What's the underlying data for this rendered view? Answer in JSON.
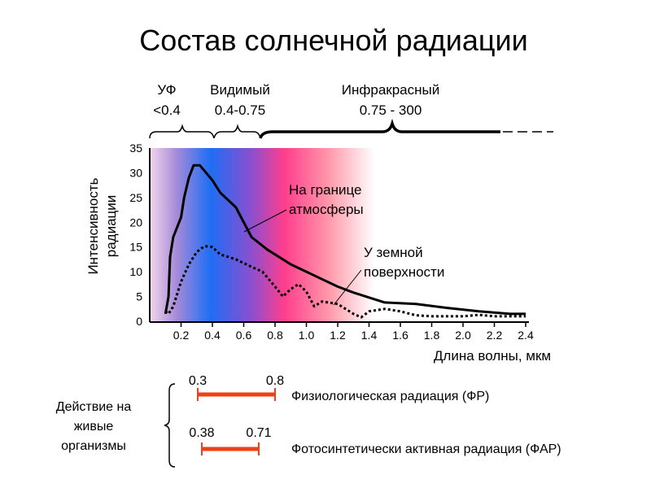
{
  "title": "Состав солнечной радиации",
  "bands": [
    {
      "name": "УФ",
      "range": "<0.4"
    },
    {
      "name": "Видимый",
      "range": "0.4-0.75"
    },
    {
      "name": "Инфракрасный",
      "range": "0.75 - 300"
    }
  ],
  "chart_data": {
    "type": "line",
    "title": "Состав солнечной радиации",
    "xlabel": "Длина волны, мкм",
    "ylabel_lines": [
      "Интенсивность",
      "радиации"
    ],
    "xlim": [
      0,
      2.4
    ],
    "ylim": [
      0,
      35
    ],
    "x_ticks": [
      "0.2",
      "0.4",
      "0.6",
      "0.8",
      "1.0",
      "1.2",
      "1.4",
      "1.6",
      "1.8",
      "2.0",
      "2.2",
      "2.4"
    ],
    "y_ticks": [
      "0",
      "5",
      "10",
      "15",
      "20",
      "25",
      "30",
      "35"
    ],
    "series": [
      {
        "name": "На границе атмосферы",
        "label_lines": [
          "На границе",
          "атмосферы"
        ],
        "style": "solid",
        "points": [
          [
            0.1,
            1.5
          ],
          [
            0.12,
            5
          ],
          [
            0.13,
            13
          ],
          [
            0.15,
            17
          ],
          [
            0.2,
            21
          ],
          [
            0.22,
            25
          ],
          [
            0.25,
            29
          ],
          [
            0.28,
            31.5
          ],
          [
            0.32,
            31.5
          ],
          [
            0.4,
            28.5
          ],
          [
            0.45,
            26
          ],
          [
            0.55,
            23
          ],
          [
            0.65,
            17
          ],
          [
            0.75,
            14.5
          ],
          [
            0.9,
            11.5
          ],
          [
            1.0,
            10
          ],
          [
            1.1,
            8.5
          ],
          [
            1.2,
            7
          ],
          [
            1.3,
            5.8
          ],
          [
            1.4,
            4.8
          ],
          [
            1.5,
            3.8
          ],
          [
            1.7,
            3.5
          ],
          [
            1.9,
            2.7
          ],
          [
            2.1,
            2
          ],
          [
            2.3,
            1.5
          ],
          [
            2.4,
            1.5
          ]
        ]
      },
      {
        "name": "У земной поверхности",
        "label_lines": [
          "У земной",
          "поверхности"
        ],
        "style": "dotted",
        "points": [
          [
            0.1,
            2
          ],
          [
            0.12,
            1.5
          ],
          [
            0.15,
            3
          ],
          [
            0.2,
            8
          ],
          [
            0.25,
            11.5
          ],
          [
            0.3,
            14
          ],
          [
            0.35,
            15.2
          ],
          [
            0.4,
            15
          ],
          [
            0.45,
            13.5
          ],
          [
            0.55,
            12.5
          ],
          [
            0.65,
            11
          ],
          [
            0.72,
            10
          ],
          [
            0.8,
            7
          ],
          [
            0.85,
            5
          ],
          [
            0.9,
            6.5
          ],
          [
            0.95,
            7.5
          ],
          [
            1.0,
            6
          ],
          [
            1.05,
            3
          ],
          [
            1.1,
            4
          ],
          [
            1.2,
            3.5
          ],
          [
            1.3,
            1.5
          ],
          [
            1.35,
            0.8
          ],
          [
            1.4,
            2
          ],
          [
            1.5,
            2.5
          ],
          [
            1.6,
            2
          ],
          [
            1.7,
            1.2
          ],
          [
            1.8,
            1
          ],
          [
            2.0,
            1
          ],
          [
            2.1,
            1.3
          ],
          [
            2.2,
            1
          ],
          [
            2.4,
            1
          ]
        ]
      }
    ],
    "grid": false
  },
  "effects": {
    "label_lines": [
      "Действие на",
      "живые",
      "организмы"
    ],
    "ranges": [
      {
        "from": "0.3",
        "to": "0.8",
        "start": 0.3,
        "end": 0.8,
        "name": "Физиологическая радиация (ФР)"
      },
      {
        "from": "0.38",
        "to": "0.71",
        "start": 0.38,
        "end": 0.71,
        "name": "Фотосинтетически активная радиация (ФАР)"
      }
    ],
    "bar_color": "#f04018"
  }
}
